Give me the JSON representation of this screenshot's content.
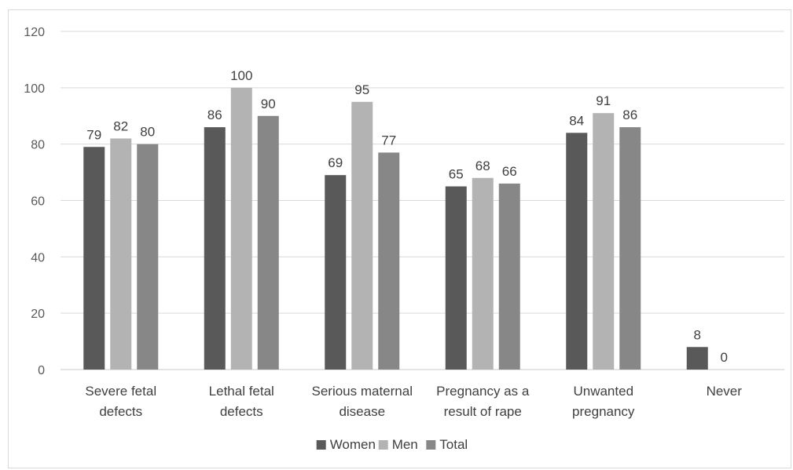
{
  "chart_data": {
    "type": "bar",
    "categories": [
      [
        "Severe fetal",
        "defects"
      ],
      [
        "Lethal fetal",
        "defects"
      ],
      [
        "Serious maternal",
        "disease"
      ],
      [
        "Pregnancy as a",
        "result of rape"
      ],
      [
        "Unwanted",
        "pregnancy"
      ],
      [
        "Never"
      ]
    ],
    "series": [
      {
        "name": "Women",
        "color": "#595959",
        "values": [
          79,
          86,
          69,
          65,
          84,
          8
        ]
      },
      {
        "name": "Men",
        "color": "#b3b3b3",
        "values": [
          82,
          100,
          95,
          68,
          91,
          0
        ]
      },
      {
        "name": "Total",
        "color": "#878787",
        "values": [
          80,
          90,
          77,
          66,
          86,
          null
        ]
      }
    ],
    "ylim": [
      0,
      120
    ],
    "yticks": [
      0,
      20,
      40,
      60,
      80,
      100,
      120
    ],
    "grid": true,
    "legend_position": "bottom",
    "title": "",
    "xlabel": "",
    "ylabel": ""
  }
}
